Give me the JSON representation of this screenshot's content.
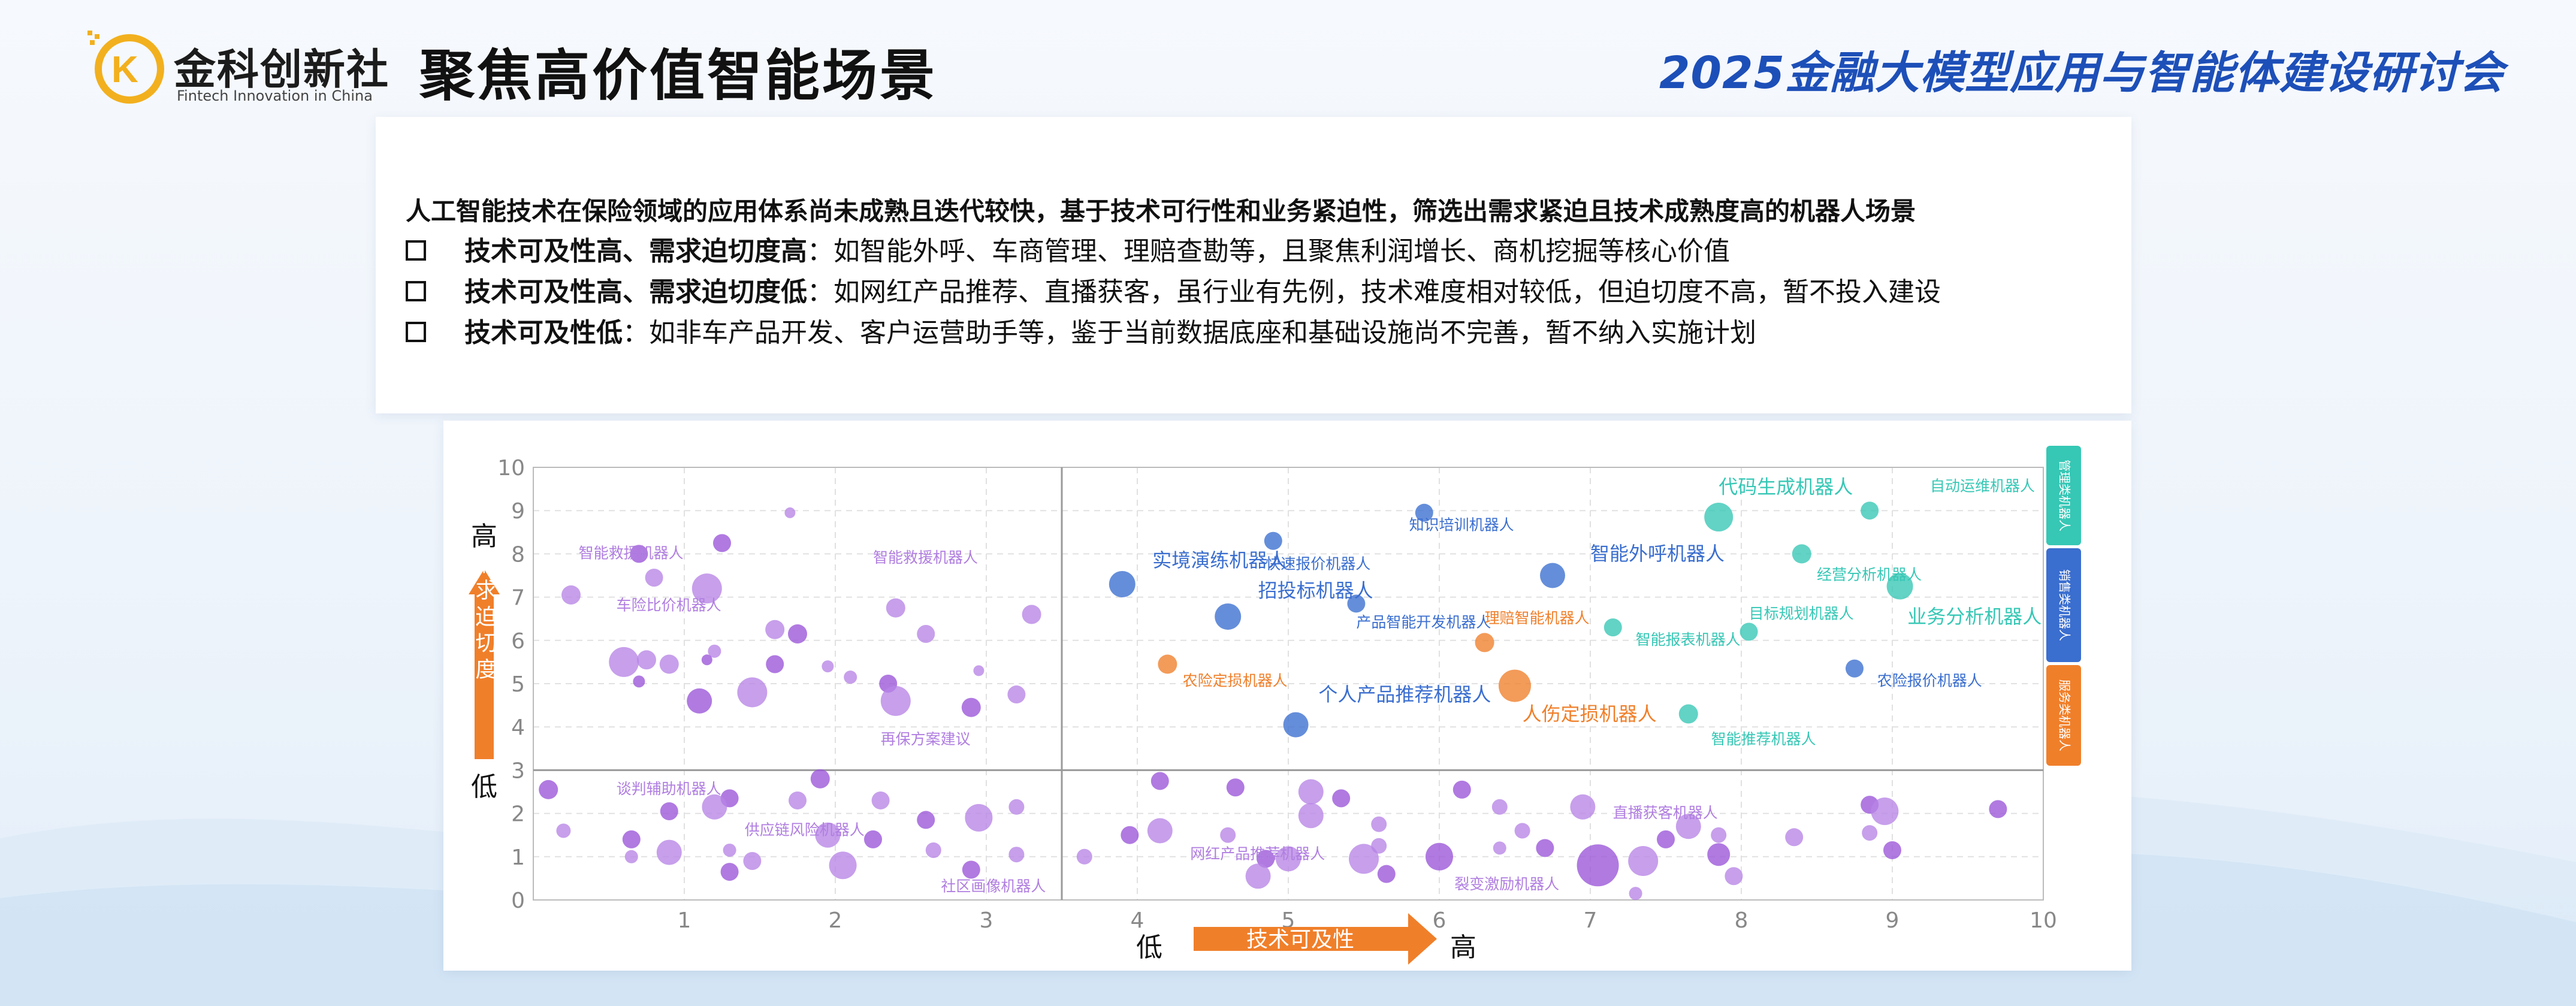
{
  "header": {
    "logo_cn": "金科创新社",
    "logo_en": "Fintech Innovation in China",
    "page_title": "聚焦高价值智能场景",
    "conference_title": "2025金融大模型应用与智能体建设研讨会"
  },
  "intro": {
    "lead": "人工智能技术在保险领域的应用体系尚未成熟且迭代较快，基于技术可行性和业务紧迫性，筛选出需求紧迫且技术成熟度高的机器人场景",
    "bullets": [
      {
        "title": "技术可及性高、需求迫切度高",
        "text": "：如智能外呼、车商管理、理赔查勘等，且聚焦利润增长、商机挖掘等核心价值"
      },
      {
        "title": "技术可及性高、需求迫切度低",
        "text": "：如网红产品推荐、直播获客，虽行业有先例，技术难度相对较低，但迫切度不高，暂不投入建设"
      },
      {
        "title": "技术可及性低",
        "text": "：如非车产品开发、客户运营助手等，鉴于当前数据底座和基础设施尚不完善，暂不纳入实施计划"
      }
    ]
  },
  "colors": {
    "purple": "#b784e6",
    "purple_dark": "#9a55d8",
    "blue": "#3a6ecf",
    "orange": "#f07f2a",
    "teal": "#36c7b5",
    "axis": "#bbbbbb",
    "grid": "#e1e1e1",
    "arrow": "#f07f2a"
  },
  "chart_data": {
    "type": "scatter",
    "xlim": [
      0,
      10
    ],
    "ylim": [
      0,
      10
    ],
    "xticks": [
      "1",
      "2",
      "3",
      "4",
      "5",
      "6",
      "7",
      "8",
      "9",
      "10"
    ],
    "yticks": [
      "0",
      "1",
      "2",
      "3",
      "4",
      "5",
      "6",
      "7",
      "8",
      "9",
      "10"
    ],
    "x_axis": {
      "low": "低",
      "label": "技术可及性",
      "high": "高"
    },
    "y_axis": {
      "high": "高",
      "label": "需求迫切度",
      "low": "低"
    },
    "divider": {
      "x": 3.5,
      "y": 3
    },
    "legend": [
      "管理类机器人",
      "销售类机器人",
      "服务类机器人"
    ],
    "labels": [
      {
        "text": "代码生成机器人",
        "x": 7.85,
        "y": 9.4,
        "color": "teal",
        "big": true
      },
      {
        "text": "自动运维机器人",
        "x": 9.25,
        "y": 9.45,
        "color": "teal"
      },
      {
        "text": "知识培训机器人",
        "x": 5.8,
        "y": 8.55,
        "color": "blue"
      },
      {
        "text": "实境演练机器人",
        "x": 4.1,
        "y": 7.7,
        "color": "blue",
        "big": true
      },
      {
        "text": "快速报价机器人",
        "x": 4.85,
        "y": 7.65,
        "color": "blue"
      },
      {
        "text": "智能外呼机器人",
        "x": 7.0,
        "y": 7.85,
        "color": "blue",
        "big": true
      },
      {
        "text": "经营分析机器人",
        "x": 8.5,
        "y": 7.4,
        "color": "teal"
      },
      {
        "text": "招投标机器人",
        "x": 4.8,
        "y": 7.0,
        "color": "blue",
        "big": true
      },
      {
        "text": "理赔智能机器人",
        "x": 6.3,
        "y": 6.4,
        "color": "orange"
      },
      {
        "text": "产品智能开发机器人",
        "x": 5.45,
        "y": 6.3,
        "color": "blue"
      },
      {
        "text": "目标规划机器人",
        "x": 8.05,
        "y": 6.5,
        "color": "teal"
      },
      {
        "text": "业务分析机器人",
        "x": 9.1,
        "y": 6.4,
        "color": "teal",
        "big": true
      },
      {
        "text": "智能报表机器人",
        "x": 7.3,
        "y": 5.9,
        "color": "teal"
      },
      {
        "text": "农险定损机器人",
        "x": 4.3,
        "y": 4.95,
        "color": "orange"
      },
      {
        "text": "个人产品推荐机器人",
        "x": 5.2,
        "y": 4.6,
        "color": "blue",
        "big": true
      },
      {
        "text": "人伤定损机器人",
        "x": 6.55,
        "y": 4.15,
        "color": "orange",
        "big": true
      },
      {
        "text": "农险报价机器人",
        "x": 8.9,
        "y": 4.95,
        "color": "blue"
      },
      {
        "text": "智能推荐机器人",
        "x": 7.8,
        "y": 3.6,
        "color": "teal"
      },
      {
        "text": "智能救援机器人",
        "x": 0.3,
        "y": 7.9,
        "color": "purple"
      },
      {
        "text": "智能救援机器人",
        "x": 2.25,
        "y": 7.8,
        "color": "purple"
      },
      {
        "text": "车险比价机器人",
        "x": 0.55,
        "y": 6.7,
        "color": "purple"
      },
      {
        "text": "再保方案建议",
        "x": 2.3,
        "y": 3.6,
        "color": "purple"
      },
      {
        "text": "谈判辅助机器人",
        "x": 0.55,
        "y": 2.45,
        "color": "purple"
      },
      {
        "text": "供应链风险机器人",
        "x": 1.4,
        "y": 1.5,
        "color": "purple"
      },
      {
        "text": "社区画像机器人",
        "x": 2.7,
        "y": 0.2,
        "color": "purple"
      },
      {
        "text": "网红产品推荐机器人",
        "x": 4.35,
        "y": 0.95,
        "color": "purple"
      },
      {
        "text": "直播获客机器人",
        "x": 7.15,
        "y": 1.9,
        "color": "purple"
      },
      {
        "text": "裂变激励机器人",
        "x": 6.1,
        "y": 0.25,
        "color": "purple"
      }
    ],
    "points": [
      {
        "x": 7.85,
        "y": 8.85,
        "s": 24,
        "c": "teal"
      },
      {
        "x": 8.85,
        "y": 9.0,
        "s": 15,
        "c": "teal"
      },
      {
        "x": 8.4,
        "y": 8.0,
        "s": 16,
        "c": "teal"
      },
      {
        "x": 9.05,
        "y": 7.25,
        "s": 22,
        "c": "teal"
      },
      {
        "x": 7.15,
        "y": 6.3,
        "s": 15,
        "c": "teal"
      },
      {
        "x": 8.05,
        "y": 6.2,
        "s": 15,
        "c": "teal"
      },
      {
        "x": 7.65,
        "y": 4.3,
        "s": 16,
        "c": "teal"
      },
      {
        "x": 5.9,
        "y": 8.95,
        "s": 15,
        "c": "blue"
      },
      {
        "x": 4.9,
        "y": 8.3,
        "s": 15,
        "c": "blue"
      },
      {
        "x": 3.9,
        "y": 7.3,
        "s": 22,
        "c": "blue"
      },
      {
        "x": 6.75,
        "y": 7.5,
        "s": 21,
        "c": "blue"
      },
      {
        "x": 5.45,
        "y": 6.85,
        "s": 15,
        "c": "blue"
      },
      {
        "x": 4.6,
        "y": 6.55,
        "s": 22,
        "c": "blue"
      },
      {
        "x": 5.05,
        "y": 4.05,
        "s": 21,
        "c": "blue"
      },
      {
        "x": 8.75,
        "y": 5.35,
        "s": 15,
        "c": "blue"
      },
      {
        "x": 6.3,
        "y": 5.95,
        "s": 16,
        "c": "orange"
      },
      {
        "x": 4.2,
        "y": 5.45,
        "s": 16,
        "c": "orange"
      },
      {
        "x": 6.5,
        "y": 4.95,
        "s": 27,
        "c": "orange"
      },
      {
        "x": 0.7,
        "y": 8.0,
        "s": 15,
        "c": "purple_dark"
      },
      {
        "x": 1.25,
        "y": 8.25,
        "s": 15,
        "c": "purple_dark"
      },
      {
        "x": 1.7,
        "y": 8.95,
        "s": 9,
        "c": "purple"
      },
      {
        "x": 0.8,
        "y": 7.45,
        "s": 15,
        "c": "purple"
      },
      {
        "x": 1.15,
        "y": 7.2,
        "s": 25,
        "c": "purple"
      },
      {
        "x": 0.25,
        "y": 7.05,
        "s": 16,
        "c": "purple"
      },
      {
        "x": 2.4,
        "y": 6.75,
        "s": 16,
        "c": "purple"
      },
      {
        "x": 3.3,
        "y": 6.6,
        "s": 16,
        "c": "purple"
      },
      {
        "x": 1.6,
        "y": 6.25,
        "s": 16,
        "c": "purple"
      },
      {
        "x": 1.75,
        "y": 6.15,
        "s": 16,
        "c": "purple_dark"
      },
      {
        "x": 2.6,
        "y": 6.15,
        "s": 15,
        "c": "purple"
      },
      {
        "x": 1.2,
        "y": 5.75,
        "s": 11,
        "c": "purple"
      },
      {
        "x": 0.6,
        "y": 5.5,
        "s": 25,
        "c": "purple"
      },
      {
        "x": 0.75,
        "y": 5.55,
        "s": 16,
        "c": "purple"
      },
      {
        "x": 0.9,
        "y": 5.45,
        "s": 16,
        "c": "purple"
      },
      {
        "x": 1.15,
        "y": 5.55,
        "s": 9,
        "c": "purple_dark"
      },
      {
        "x": 1.6,
        "y": 5.45,
        "s": 15,
        "c": "purple_dark"
      },
      {
        "x": 1.95,
        "y": 5.4,
        "s": 10,
        "c": "purple"
      },
      {
        "x": 2.1,
        "y": 5.15,
        "s": 11,
        "c": "purple"
      },
      {
        "x": 2.35,
        "y": 5.0,
        "s": 15,
        "c": "purple_dark"
      },
      {
        "x": 2.95,
        "y": 5.3,
        "s": 9,
        "c": "purple"
      },
      {
        "x": 0.7,
        "y": 5.05,
        "s": 10,
        "c": "purple_dark"
      },
      {
        "x": 1.45,
        "y": 4.8,
        "s": 25,
        "c": "purple"
      },
      {
        "x": 1.1,
        "y": 4.6,
        "s": 21,
        "c": "purple_dark"
      },
      {
        "x": 2.4,
        "y": 4.6,
        "s": 25,
        "c": "purple"
      },
      {
        "x": 3.2,
        "y": 4.75,
        "s": 15,
        "c": "purple"
      },
      {
        "x": 2.9,
        "y": 4.45,
        "s": 16,
        "c": "purple_dark"
      },
      {
        "x": 0.1,
        "y": 2.55,
        "s": 16,
        "c": "purple_dark"
      },
      {
        "x": 1.9,
        "y": 2.8,
        "s": 16,
        "c": "purple_dark"
      },
      {
        "x": 0.2,
        "y": 1.6,
        "s": 12,
        "c": "purple"
      },
      {
        "x": 0.9,
        "y": 2.05,
        "s": 15,
        "c": "purple_dark"
      },
      {
        "x": 1.3,
        "y": 2.35,
        "s": 15,
        "c": "purple_dark"
      },
      {
        "x": 1.75,
        "y": 2.3,
        "s": 15,
        "c": "purple"
      },
      {
        "x": 1.2,
        "y": 2.15,
        "s": 21,
        "c": "purple"
      },
      {
        "x": 2.3,
        "y": 2.3,
        "s": 15,
        "c": "purple"
      },
      {
        "x": 2.6,
        "y": 1.85,
        "s": 15,
        "c": "purple_dark"
      },
      {
        "x": 2.95,
        "y": 1.9,
        "s": 23,
        "c": "purple"
      },
      {
        "x": 3.2,
        "y": 2.15,
        "s": 13,
        "c": "purple"
      },
      {
        "x": 0.65,
        "y": 1.4,
        "s": 15,
        "c": "purple_dark"
      },
      {
        "x": 0.65,
        "y": 1.0,
        "s": 11,
        "c": "purple"
      },
      {
        "x": 0.9,
        "y": 1.1,
        "s": 21,
        "c": "purple"
      },
      {
        "x": 1.3,
        "y": 1.15,
        "s": 11,
        "c": "purple"
      },
      {
        "x": 1.45,
        "y": 0.9,
        "s": 15,
        "c": "purple"
      },
      {
        "x": 1.3,
        "y": 0.65,
        "s": 15,
        "c": "purple_dark"
      },
      {
        "x": 1.95,
        "y": 1.5,
        "s": 21,
        "c": "purple"
      },
      {
        "x": 2.25,
        "y": 1.4,
        "s": 15,
        "c": "purple_dark"
      },
      {
        "x": 2.05,
        "y": 0.8,
        "s": 23,
        "c": "purple"
      },
      {
        "x": 2.65,
        "y": 1.15,
        "s": 13,
        "c": "purple"
      },
      {
        "x": 3.2,
        "y": 1.05,
        "s": 13,
        "c": "purple"
      },
      {
        "x": 2.9,
        "y": 0.7,
        "s": 15,
        "c": "purple_dark"
      },
      {
        "x": 4.15,
        "y": 2.75,
        "s": 15,
        "c": "purple_dark"
      },
      {
        "x": 3.65,
        "y": 1.0,
        "s": 13,
        "c": "purple"
      },
      {
        "x": 3.95,
        "y": 1.5,
        "s": 15,
        "c": "purple_dark"
      },
      {
        "x": 4.15,
        "y": 1.6,
        "s": 21,
        "c": "purple"
      },
      {
        "x": 4.65,
        "y": 2.6,
        "s": 15,
        "c": "purple_dark"
      },
      {
        "x": 5.15,
        "y": 2.5,
        "s": 21,
        "c": "purple"
      },
      {
        "x": 5.35,
        "y": 2.35,
        "s": 15,
        "c": "purple_dark"
      },
      {
        "x": 5.15,
        "y": 1.95,
        "s": 21,
        "c": "purple"
      },
      {
        "x": 5.6,
        "y": 1.75,
        "s": 13,
        "c": "purple"
      },
      {
        "x": 5.6,
        "y": 1.25,
        "s": 13,
        "c": "purple"
      },
      {
        "x": 6.15,
        "y": 2.55,
        "s": 15,
        "c": "purple_dark"
      },
      {
        "x": 6.4,
        "y": 2.15,
        "s": 13,
        "c": "purple"
      },
      {
        "x": 6.55,
        "y": 1.6,
        "s": 13,
        "c": "purple"
      },
      {
        "x": 6.4,
        "y": 1.2,
        "s": 11,
        "c": "purple"
      },
      {
        "x": 4.6,
        "y": 1.5,
        "s": 13,
        "c": "purple"
      },
      {
        "x": 4.85,
        "y": 0.95,
        "s": 15,
        "c": "purple_dark"
      },
      {
        "x": 5.0,
        "y": 0.95,
        "s": 21,
        "c": "purple"
      },
      {
        "x": 4.8,
        "y": 0.55,
        "s": 21,
        "c": "purple"
      },
      {
        "x": 5.5,
        "y": 0.95,
        "s": 25,
        "c": "purple"
      },
      {
        "x": 5.65,
        "y": 0.6,
        "s": 15,
        "c": "purple_dark"
      },
      {
        "x": 6.0,
        "y": 1.0,
        "s": 23,
        "c": "purple_dark"
      },
      {
        "x": 6.7,
        "y": 1.2,
        "s": 15,
        "c": "purple_dark"
      },
      {
        "x": 6.95,
        "y": 2.15,
        "s": 21,
        "c": "purple"
      },
      {
        "x": 7.05,
        "y": 0.8,
        "s": 35,
        "c": "purple_dark"
      },
      {
        "x": 7.35,
        "y": 0.9,
        "s": 25,
        "c": "purple"
      },
      {
        "x": 7.3,
        "y": 0.15,
        "s": 11,
        "c": "purple"
      },
      {
        "x": 7.5,
        "y": 1.4,
        "s": 15,
        "c": "purple_dark"
      },
      {
        "x": 7.65,
        "y": 1.7,
        "s": 21,
        "c": "purple"
      },
      {
        "x": 7.85,
        "y": 1.5,
        "s": 13,
        "c": "purple"
      },
      {
        "x": 7.85,
        "y": 1.05,
        "s": 19,
        "c": "purple_dark"
      },
      {
        "x": 7.95,
        "y": 0.55,
        "s": 15,
        "c": "purple"
      },
      {
        "x": 8.35,
        "y": 1.45,
        "s": 15,
        "c": "purple"
      },
      {
        "x": 8.85,
        "y": 2.2,
        "s": 15,
        "c": "purple_dark"
      },
      {
        "x": 8.85,
        "y": 1.55,
        "s": 13,
        "c": "purple"
      },
      {
        "x": 8.95,
        "y": 2.05,
        "s": 23,
        "c": "purple"
      },
      {
        "x": 9.0,
        "y": 1.15,
        "s": 15,
        "c": "purple_dark"
      },
      {
        "x": 9.7,
        "y": 2.1,
        "s": 15,
        "c": "purple_dark"
      }
    ]
  }
}
